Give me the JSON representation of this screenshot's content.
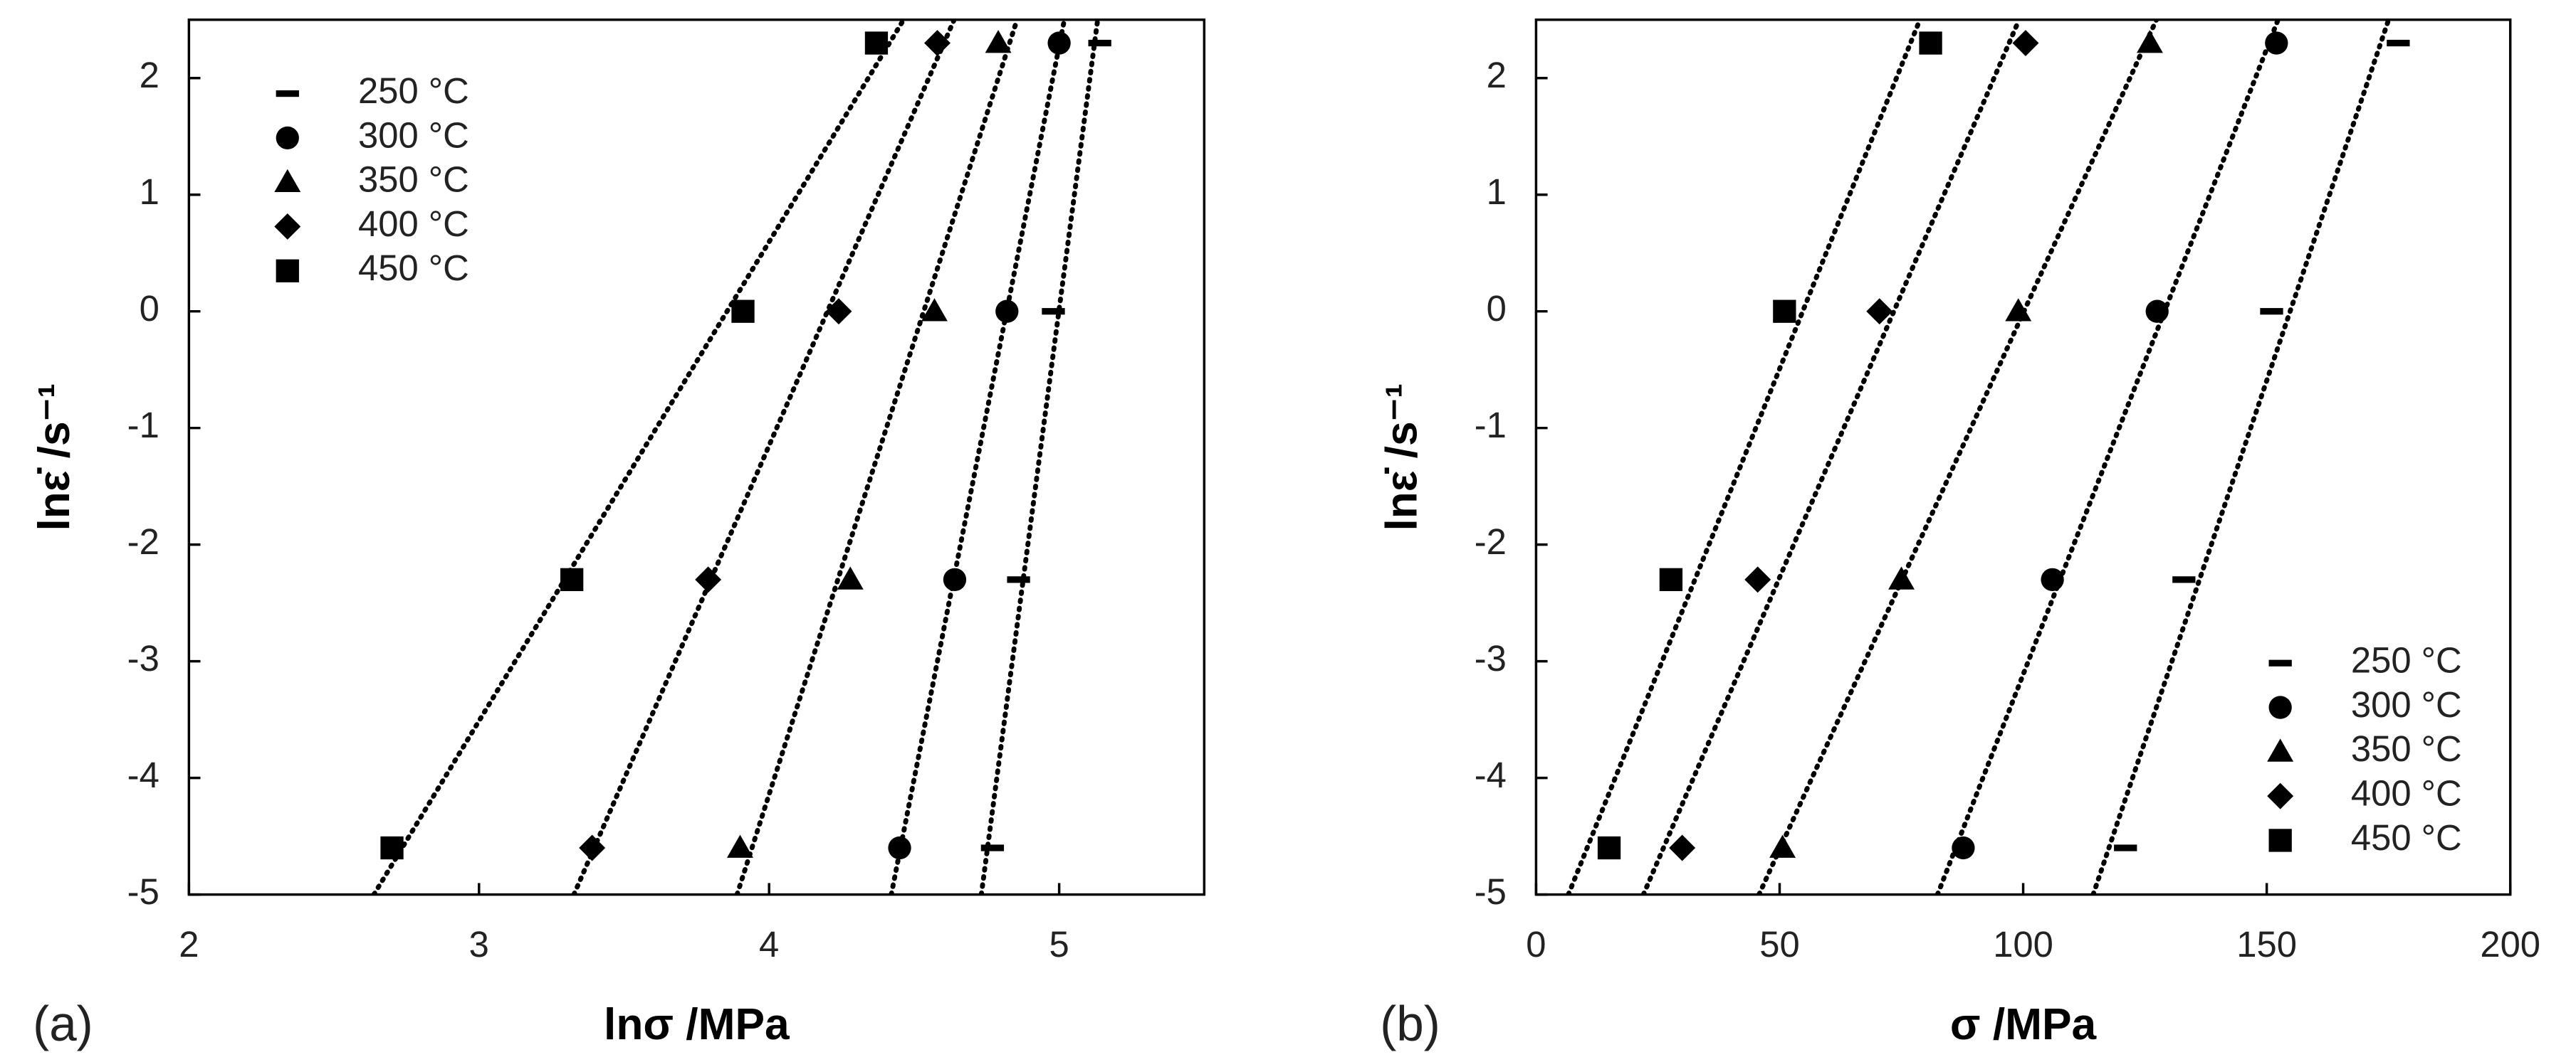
{
  "chart_data": [
    {
      "type": "scatter",
      "panel_label": "(a)",
      "x_label": "lnσ /MPa",
      "y_label": "lnε̇ /s⁻¹",
      "xlim": [
        2,
        5.5
      ],
      "xticks": [
        2,
        3,
        4,
        5
      ],
      "ylim": [
        -5,
        2.5
      ],
      "yticks": [
        -5,
        -4,
        -3,
        -2,
        -1,
        0,
        1,
        2
      ],
      "legend": "upper left",
      "fit_lines": true,
      "series": [
        {
          "name": "250 °C",
          "marker": "dash",
          "color": "#000000",
          "x": [
            5.14,
            4.98,
            4.86,
            4.77
          ],
          "values": [
            2.3,
            0,
            -2.3,
            -4.6
          ]
        },
        {
          "name": "300 °C",
          "marker": "circle",
          "color": "#000000",
          "x": [
            5.0,
            4.82,
            4.64,
            4.45
          ],
          "values": [
            2.3,
            0,
            -2.3,
            -4.6
          ]
        },
        {
          "name": "350 °C",
          "marker": "triangle",
          "color": "#000000",
          "x": [
            4.79,
            4.57,
            4.28,
            3.9
          ],
          "values": [
            2.3,
            0,
            -2.3,
            -4.6
          ]
        },
        {
          "name": "400 °C",
          "marker": "diamond",
          "color": "#000000",
          "x": [
            4.58,
            4.24,
            3.79,
            3.39
          ],
          "values": [
            2.3,
            0,
            -2.3,
            -4.6
          ]
        },
        {
          "name": "450 °C",
          "marker": "square",
          "color": "#000000",
          "x": [
            4.37,
            3.91,
            3.32,
            2.7
          ],
          "values": [
            2.3,
            0,
            -2.3,
            -4.6
          ]
        }
      ]
    },
    {
      "type": "scatter",
      "panel_label": "(b)",
      "x_label": "σ /MPa",
      "y_label": "lnε̇ /s⁻¹",
      "xlim": [
        0,
        200
      ],
      "xticks": [
        0,
        50,
        100,
        150,
        200
      ],
      "ylim": [
        -5,
        2.5
      ],
      "yticks": [
        -5,
        -4,
        -3,
        -2,
        -1,
        0,
        1,
        2
      ],
      "legend": "lower right",
      "fit_lines": true,
      "series": [
        {
          "name": "250 °C",
          "marker": "dash",
          "color": "#000000",
          "x": [
            177,
            151,
            133,
            121
          ],
          "values": [
            2.3,
            0,
            -2.3,
            -4.6
          ]
        },
        {
          "name": "300 °C",
          "marker": "circle",
          "color": "#000000",
          "x": [
            152,
            127.5,
            106,
            87.7
          ],
          "values": [
            2.3,
            0,
            -2.3,
            -4.6
          ]
        },
        {
          "name": "350 °C",
          "marker": "triangle",
          "color": "#000000",
          "x": [
            126,
            99,
            75,
            50.6
          ],
          "values": [
            2.3,
            0,
            -2.3,
            -4.6
          ]
        },
        {
          "name": "400 °C",
          "marker": "diamond",
          "color": "#000000",
          "x": [
            100.5,
            70.5,
            45.5,
            30
          ],
          "values": [
            2.3,
            0,
            -2.3,
            -4.6
          ]
        },
        {
          "name": "450 °C",
          "marker": "square",
          "color": "#000000",
          "x": [
            81,
            51,
            27.7,
            15
          ],
          "values": [
            2.3,
            0,
            -2.3,
            -4.6
          ]
        }
      ]
    }
  ]
}
